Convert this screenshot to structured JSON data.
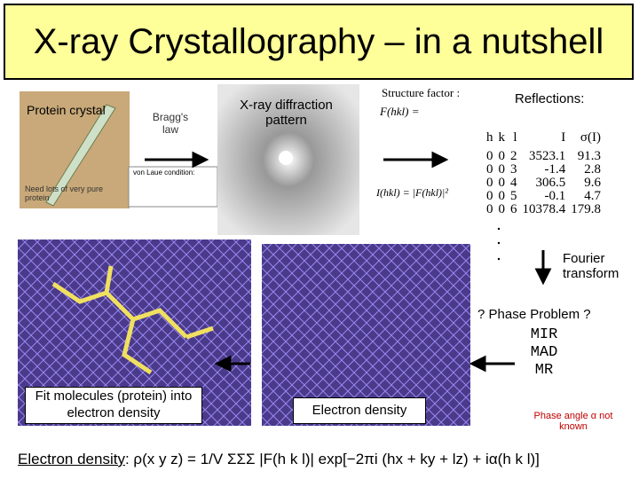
{
  "slide": {
    "title": "X-ray Crystallography – in a nutshell",
    "crystal_label": "Protein crystal",
    "crystal_note": "Need lots of very pure protein",
    "bragg_label": "Bragg's law",
    "von_laue_label": "von Laue condition:",
    "diffraction_label": "X-ray diffraction pattern",
    "structure_factor_label": "Structure factor :",
    "structure_factor_formula": "F(hkl) =",
    "intensity_formula": "I(hkl) = |F(hkl)|²",
    "reflections": {
      "title": "Reflections:",
      "columns": [
        "h",
        "k",
        "l",
        "I",
        "σ(I)"
      ],
      "rows": [
        [
          0,
          0,
          2,
          3523.1,
          91.3
        ],
        [
          0,
          0,
          3,
          -1.4,
          2.8
        ],
        [
          0,
          0,
          4,
          306.5,
          9.6
        ],
        [
          0,
          0,
          5,
          -0.1,
          4.7
        ],
        [
          0,
          0,
          6,
          10378.4,
          179.8
        ]
      ]
    },
    "fourier_label": "Fourier transform",
    "phase_problem": "? Phase Problem ?",
    "methods": [
      "MIR",
      "MAD",
      "MR"
    ],
    "fit_label": "Fit molecules (protein) into electron density",
    "density_label": "Electron density",
    "phase_note": "Phase angle α not known",
    "formula_label": "Electron density",
    "formula": ": ρ(x y z) = 1/V ΣΣΣ |F(h k l)| exp[−2πi (hx + ky + lz) + iα(h k l)]"
  }
}
